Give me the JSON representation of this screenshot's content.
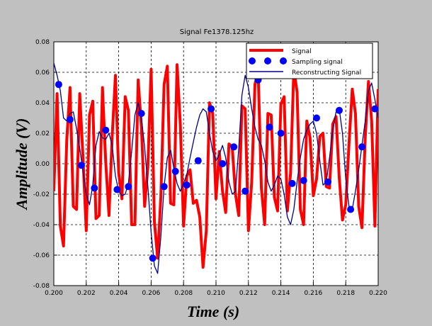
{
  "chart_data": {
    "type": "line",
    "title": "Signal Fe1378.125hz",
    "xlabel": "Time (s)",
    "ylabel": "Amplitude (V)",
    "xlim": [
      0.2,
      0.22
    ],
    "ylim": [
      -0.08,
      0.08
    ],
    "x_ticks": [
      "0.200",
      "0.202",
      "0.204",
      "0.206",
      "0.208",
      "0.210",
      "0.212",
      "0.214",
      "0.216",
      "0.218",
      "0.220"
    ],
    "y_ticks": [
      "0.08",
      "0.06",
      "0.04",
      "0.02",
      "0.00",
      "-0.02",
      "-0.04",
      "-0.06",
      "-0.08"
    ],
    "grid": true,
    "legend_position": "top-right",
    "series": [
      {
        "name": "Signal",
        "style": "thick-line",
        "color": "#ff0000",
        "x": [
          0.2,
          0.2002,
          0.2004,
          0.2006,
          0.2008,
          0.201,
          0.2012,
          0.2014,
          0.2016,
          0.2018,
          0.202,
          0.2022,
          0.2024,
          0.2026,
          0.2028,
          0.203,
          0.2032,
          0.2034,
          0.2036,
          0.2038,
          0.204,
          0.2042,
          0.2044,
          0.2046,
          0.2048,
          0.205,
          0.2052,
          0.2054,
          0.2056,
          0.2058,
          0.206,
          0.2062,
          0.2064,
          0.2066,
          0.2068,
          0.207,
          0.2072,
          0.2074,
          0.2076,
          0.2078,
          0.208,
          0.2082,
          0.2084,
          0.2086,
          0.2088,
          0.209,
          0.2092,
          0.2094,
          0.2096,
          0.2098,
          0.21,
          0.2102,
          0.2104,
          0.2106,
          0.2108,
          0.211,
          0.2112,
          0.2114,
          0.2116,
          0.2118,
          0.212,
          0.2122,
          0.2124,
          0.2126,
          0.2128,
          0.213,
          0.2132,
          0.2134,
          0.2136,
          0.2138,
          0.214,
          0.2142,
          0.2144,
          0.2146,
          0.2148,
          0.215,
          0.2152,
          0.2154,
          0.2156,
          0.2158,
          0.216,
          0.2162,
          0.2164,
          0.2166,
          0.2168,
          0.217,
          0.2172,
          0.2174,
          0.2176,
          0.2178,
          0.218,
          0.2182,
          0.2184,
          0.2186,
          0.2188,
          0.219,
          0.2192,
          0.2194,
          0.2196,
          0.2198,
          0.22
        ],
        "values": [
          -0.018,
          0.046,
          -0.041,
          -0.054,
          0.016,
          0.05,
          -0.028,
          -0.03,
          0.046,
          0.004,
          -0.044,
          0.032,
          0.041,
          -0.036,
          -0.034,
          0.05,
          0.001,
          -0.034,
          0.018,
          0.058,
          -0.006,
          -0.023,
          0.044,
          0.035,
          -0.04,
          -0.04,
          0.055,
          0.024,
          -0.028,
          -0.002,
          0.062,
          -0.038,
          -0.062,
          -0.022,
          0.052,
          0.064,
          -0.026,
          -0.027,
          0.065,
          0.026,
          -0.041,
          -0.008,
          -0.004,
          -0.026,
          -0.024,
          -0.035,
          -0.068,
          -0.044,
          0.04,
          0.033,
          -0.023,
          0.008,
          -0.018,
          -0.032,
          0.013,
          0.011,
          -0.02,
          -0.034,
          0.038,
          0.036,
          -0.044,
          -0.012,
          0.052,
          0.061,
          -0.016,
          -0.04,
          0.033,
          0.032,
          -0.022,
          -0.031,
          0.039,
          0.044,
          -0.031,
          -0.006,
          0.062,
          0.047,
          -0.03,
          -0.04,
          0.028,
          0.017,
          -0.021,
          -0.01,
          0.018,
          0.02,
          -0.015,
          -0.016,
          0.026,
          0.031,
          -0.009,
          -0.037,
          -0.027,
          0.013,
          0.049,
          0.033,
          -0.028,
          -0.042,
          0.017,
          0.054,
          0.028,
          -0.041,
          0.049
        ]
      },
      {
        "name": "Sampling signal",
        "style": "markers",
        "color": "#0000ff",
        "x": [
          0.2003,
          0.201,
          0.2017,
          0.2025,
          0.2032,
          0.2039,
          0.2046,
          0.2054,
          0.2061,
          0.2068,
          0.2075,
          0.2082,
          0.2089,
          0.2097,
          0.2104,
          0.2111,
          0.2118,
          0.2126,
          0.2133,
          0.214,
          0.2147,
          0.2154,
          0.2162,
          0.2169,
          0.2176,
          0.2183,
          0.219,
          0.2198
        ],
        "values": [
          0.052,
          0.029,
          -0.001,
          -0.016,
          0.022,
          -0.017,
          -0.015,
          0.033,
          -0.062,
          -0.015,
          -0.005,
          -0.014,
          0.002,
          0.036,
          0.0,
          0.011,
          -0.018,
          0.055,
          0.024,
          0.02,
          -0.013,
          -0.011,
          0.03,
          -0.012,
          0.035,
          -0.03,
          0.011,
          0.036
        ]
      },
      {
        "name": "Reconstructing Signal",
        "style": "thin-line",
        "color": "#00008b",
        "x": [
          0.2,
          0.2002,
          0.2004,
          0.2006,
          0.2008,
          0.201,
          0.2012,
          0.2014,
          0.2016,
          0.2018,
          0.202,
          0.2022,
          0.2024,
          0.2026,
          0.2028,
          0.203,
          0.2032,
          0.2034,
          0.2036,
          0.2038,
          0.204,
          0.2042,
          0.2044,
          0.2046,
          0.2048,
          0.205,
          0.2052,
          0.2054,
          0.2056,
          0.2058,
          0.206,
          0.2062,
          0.2064,
          0.2066,
          0.2068,
          0.207,
          0.2072,
          0.2074,
          0.2076,
          0.2078,
          0.208,
          0.2082,
          0.2084,
          0.2086,
          0.2088,
          0.209,
          0.2092,
          0.2094,
          0.2096,
          0.2098,
          0.21,
          0.2102,
          0.2104,
          0.2106,
          0.2108,
          0.211,
          0.2112,
          0.2114,
          0.2116,
          0.2118,
          0.212,
          0.2122,
          0.2124,
          0.2126,
          0.2128,
          0.213,
          0.2132,
          0.2134,
          0.2136,
          0.2138,
          0.214,
          0.2142,
          0.2144,
          0.2146,
          0.2148,
          0.215,
          0.2152,
          0.2154,
          0.2156,
          0.2158,
          0.216,
          0.2162,
          0.2164,
          0.2166,
          0.2168,
          0.217,
          0.2172,
          0.2174,
          0.2176,
          0.2178,
          0.218,
          0.2182,
          0.2184,
          0.2186,
          0.2188,
          0.219,
          0.2192,
          0.2194,
          0.2196,
          0.2198,
          0.22
        ],
        "values": [
          0.066,
          0.058,
          0.048,
          0.03,
          0.028,
          0.033,
          0.034,
          0.023,
          0.01,
          -0.005,
          -0.02,
          -0.027,
          -0.014,
          0.012,
          0.021,
          0.017,
          0.016,
          0.02,
          0.012,
          -0.008,
          -0.018,
          -0.021,
          -0.02,
          -0.013,
          0.008,
          0.032,
          0.04,
          0.03,
          0.011,
          -0.015,
          -0.045,
          -0.067,
          -0.072,
          -0.048,
          -0.015,
          0.004,
          0.009,
          -0.003,
          -0.013,
          -0.018,
          -0.013,
          -0.007,
          0.004,
          0.014,
          0.024,
          0.032,
          0.036,
          0.034,
          0.02,
          0.008,
          0.002,
          0.006,
          0.012,
          0.004,
          -0.012,
          -0.02,
          -0.018,
          0.01,
          0.045,
          0.058,
          0.05,
          0.036,
          0.024,
          0.016,
          0.012,
          0.002,
          -0.012,
          -0.018,
          -0.014,
          -0.008,
          -0.01,
          -0.02,
          -0.035,
          -0.04,
          -0.03,
          -0.012,
          0.004,
          0.016,
          0.022,
          0.026,
          0.028,
          0.02,
          0.002,
          -0.014,
          -0.012,
          0.004,
          0.022,
          0.034,
          0.036,
          0.02,
          -0.01,
          -0.028,
          -0.03,
          -0.018,
          -0.004,
          0.012,
          0.028,
          0.048,
          0.053,
          0.042,
          0.03
        ]
      }
    ]
  }
}
